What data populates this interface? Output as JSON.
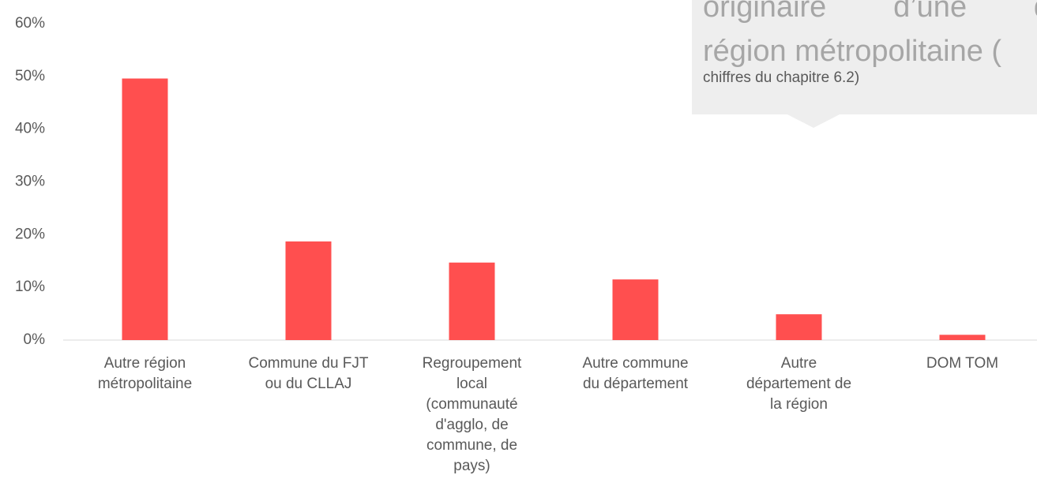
{
  "chart_data": {
    "type": "bar",
    "categories": [
      "Autre région\nmétropolitaine",
      "Commune du FJT\nou du CLLAJ",
      "Regroupement\nlocal\n(communauté\nd'agglo, de\ncommune, de\npays)",
      "Autre commune\ndu département",
      "Autre\ndépartement de\nla région",
      "DOM TOM"
    ],
    "values": [
      49.6,
      18.7,
      14.7,
      11.5,
      4.9,
      1.0
    ],
    "color": "#ff4f4f",
    "ylim": [
      0,
      60
    ],
    "yticks": [
      {
        "value": 0,
        "label": "0%"
      },
      {
        "value": 10,
        "label": "10%"
      },
      {
        "value": 20,
        "label": "20%"
      },
      {
        "value": 30,
        "label": "30%"
      },
      {
        "value": 40,
        "label": "40%"
      },
      {
        "value": 50,
        "label": "50%"
      },
      {
        "value": 60,
        "label": "60%"
      }
    ],
    "grid": false,
    "annotation": [
      "originaire d’une d",
      "région métropolitaine (",
      "chiffres du chapitre 6.2)"
    ]
  }
}
